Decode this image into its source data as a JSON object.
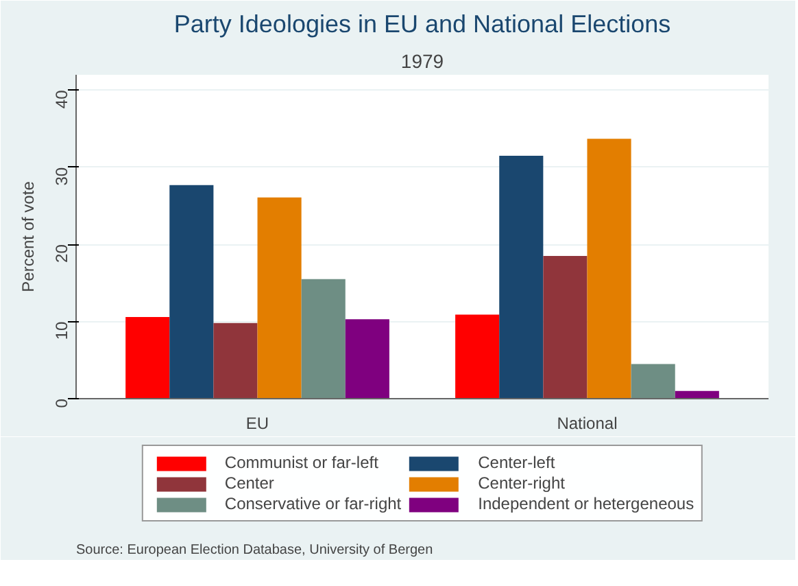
{
  "chart_data": {
    "type": "bar",
    "title": "Party Ideologies in EU and National Elections",
    "subtitle": "1979",
    "ylabel": "Percent of vote",
    "categories": [
      "EU",
      "National"
    ],
    "series": [
      {
        "name": "Communist or far-left",
        "color": "#ff0000",
        "values": [
          10.6,
          10.9
        ]
      },
      {
        "name": "Center-left",
        "color": "#1a476f",
        "values": [
          27.7,
          31.5
        ]
      },
      {
        "name": "Center",
        "color": "#90353b",
        "values": [
          9.8,
          18.5
        ]
      },
      {
        "name": "Center-right",
        "color": "#e37e00",
        "values": [
          26.1,
          33.7
        ]
      },
      {
        "name": "Conservative or far-right",
        "color": "#6e8e84",
        "values": [
          15.5,
          4.5
        ]
      },
      {
        "name": "Independent or hetergeneous",
        "color": "#7f007f",
        "values": [
          10.3,
          1.0
        ]
      }
    ],
    "ylim": [
      0,
      42
    ],
    "yticks": [
      0,
      10,
      20,
      30,
      40
    ],
    "grid": "y",
    "legend": "bottom",
    "annotations": [
      "Source: European Election Database, University of Bergen"
    ]
  }
}
